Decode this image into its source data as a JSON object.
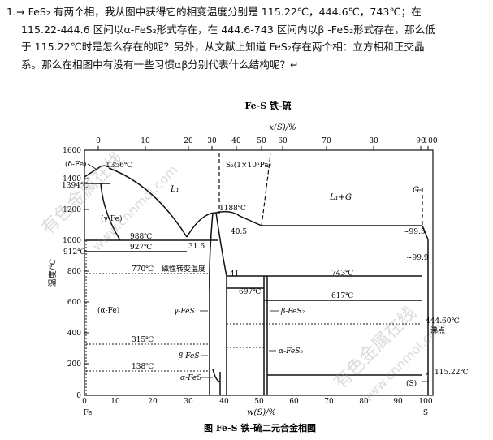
{
  "question": {
    "lines": [
      "1.→ FeS₂ 有两个相，我从图中获得它的相变温度分别是  115.22℃，444.6℃，743℃；在",
      "115.22-444.6 区间以α-FeS₂形式存在，在 444.6-743 区间内以β -FeS₂形式存在，那么低",
      "于 115.22℃时是怎么存在的呢？另外，从文献上知道 FeS₂存在两个相：立方相和正交晶",
      "系。那么在相图中有没有一些习惯αβ分别代表什么结构呢？↵"
    ]
  },
  "figure": {
    "title": "Fe-S   铁-硫",
    "caption": "图 Fe-S 铁-硫二元合金相图",
    "top_axis": {
      "label": "x(S)/%",
      "ticks": [
        "0",
        "10",
        "20",
        "30",
        "40",
        "50",
        "60",
        "70",
        "80",
        "90",
        "100"
      ]
    },
    "bottom_axis": {
      "label": "w(S)/%",
      "ticks": [
        "0",
        "10",
        "20",
        "30",
        "40",
        "50",
        "60",
        "70",
        "80",
        "90",
        "100"
      ],
      "left_end": "Fe",
      "right_end": "S"
    },
    "y_axis": {
      "label": "温度/℃",
      "ticks": [
        "1600",
        "1400",
        "1200",
        "1000",
        "800",
        "600",
        "400",
        "200",
        "0"
      ]
    },
    "labels": {
      "delta_fe": "(δ-Fe)",
      "t1356": "1356℃",
      "t1394": "1394℃",
      "gamma_fe_region": "(γ-Fe)",
      "l1": "L₁",
      "s2_gas": "S₂(1×10⁵Pa)",
      "t1188": "1188℃",
      "l1_g": "L₁+G",
      "g": "G",
      "t988": "988℃",
      "t927": "927℃",
      "c31_6": "31.6",
      "c40_5": "40.5",
      "c99_5": "~99.5",
      "c99_9": "~99.9",
      "t912": "912℃",
      "t770": "770℃",
      "magnetic": "磁性转变温度",
      "c41": "41",
      "t743": "743℃",
      "t697": "697℃",
      "t617": "617℃",
      "alpha_fe": "(α-Fe)",
      "gamma_fes": "γ-FeS",
      "beta_fes2": "β-FeS₂",
      "t444": "444.60℃",
      "boiling": "沸点",
      "t315": "315℃",
      "beta_fes": "β-FeS",
      "alpha_fes2": "α-FeS₂",
      "t138": "138℃",
      "alpha_fes": "α-FeS",
      "t115": "115.22℃",
      "s_phase": "(S)"
    },
    "watermark": "有色金属在线 www.cnnmol.com"
  }
}
